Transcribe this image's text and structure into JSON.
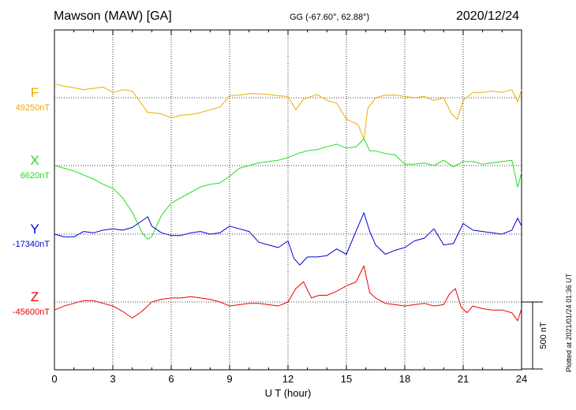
{
  "header": {
    "station": "Mawson (MAW)  [GA]",
    "coords": "GG (-67.60°,  62.88°)",
    "date": "2020/12/24"
  },
  "footer": {
    "plotted": "Plotted at 2021/01/24 01:36 UT"
  },
  "chart_data": {
    "type": "line",
    "xlabel": "U T (hour)",
    "xlim": [
      0,
      24
    ],
    "xticks": [
      0,
      3,
      6,
      9,
      12,
      15,
      18,
      21,
      24
    ],
    "xtick_labels": [
      "0",
      "3",
      "6",
      "9",
      "12",
      "15",
      "18",
      "21",
      "24"
    ],
    "grid": true,
    "scale_bar": {
      "label": "500 nT",
      "value_nT": 500
    },
    "series": [
      {
        "name": "F",
        "baseline_label": "49250nT",
        "baseline_nT": 49250,
        "color": "#f0a800",
        "x": [
          0,
          0.5,
          1,
          1.5,
          2,
          2.5,
          3,
          3.5,
          4,
          4.5,
          4.8,
          5,
          5.5,
          6,
          6.5,
          7,
          7.5,
          8,
          8.5,
          9,
          9.5,
          10,
          10.5,
          11,
          11.5,
          12,
          12.4,
          12.8,
          13.5,
          14,
          14.5,
          15,
          15.3,
          15.6,
          15.9,
          16.1,
          16.5,
          17,
          17.5,
          18,
          18.5,
          19,
          19.5,
          20,
          20.4,
          20.7,
          21,
          21.5,
          22,
          22.5,
          23,
          23.5,
          23.8,
          24
        ],
        "values": [
          105,
          85,
          75,
          60,
          70,
          80,
          40,
          60,
          50,
          -50,
          -110,
          -110,
          -120,
          -150,
          -130,
          -125,
          -110,
          -90,
          -70,
          15,
          20,
          30,
          30,
          25,
          15,
          10,
          -90,
          -10,
          25,
          -20,
          -40,
          -160,
          -180,
          -200,
          -310,
          -80,
          0,
          20,
          20,
          10,
          0,
          10,
          -20,
          0,
          -120,
          -160,
          -20,
          40,
          40,
          50,
          40,
          60,
          -30,
          60
        ]
      },
      {
        "name": "X",
        "baseline_label": "6620nT",
        "baseline_nT": 6620,
        "color": "#22dd22",
        "x": [
          0,
          0.5,
          1,
          1.5,
          2,
          2.5,
          3,
          3.5,
          4,
          4.5,
          4.8,
          5,
          5.5,
          6,
          6.5,
          7,
          7.5,
          8,
          8.5,
          9,
          9.5,
          10,
          10.5,
          11,
          11.5,
          12,
          12.5,
          13,
          13.5,
          14,
          14.5,
          15,
          15.5,
          15.9,
          16.2,
          16.5,
          17,
          17.5,
          18,
          18.5,
          19,
          19.5,
          20,
          20.5,
          21,
          21.5,
          22,
          22.5,
          23,
          23.5,
          23.8,
          24
        ],
        "values": [
          0,
          -20,
          -40,
          -70,
          -100,
          -140,
          -170,
          -240,
          -350,
          -500,
          -550,
          -530,
          -370,
          -280,
          -240,
          -200,
          -160,
          -140,
          -130,
          -80,
          -20,
          0,
          20,
          30,
          40,
          60,
          90,
          110,
          120,
          140,
          160,
          130,
          140,
          200,
          110,
          110,
          90,
          80,
          10,
          10,
          20,
          0,
          40,
          -10,
          30,
          30,
          10,
          20,
          30,
          40,
          -160,
          -50
        ]
      },
      {
        "name": "Y",
        "baseline_label": "-17340nT",
        "baseline_nT": -17340,
        "color": "#0000dd",
        "x": [
          0,
          0.5,
          1,
          1.5,
          2,
          2.5,
          3,
          3.5,
          4,
          4.5,
          4.8,
          5,
          5.5,
          6,
          6.5,
          7,
          7.5,
          8,
          8.5,
          9,
          9.5,
          10,
          10.5,
          11,
          11.5,
          12,
          12.3,
          12.6,
          13,
          13.5,
          14,
          14.5,
          15,
          15.4,
          15.9,
          16.2,
          16.5,
          17,
          17.5,
          18,
          18.5,
          19,
          19.5,
          20,
          20.5,
          21,
          21.5,
          22,
          22.5,
          23,
          23.5,
          23.8,
          24
        ],
        "values": [
          0,
          -20,
          -20,
          20,
          10,
          30,
          40,
          30,
          50,
          100,
          130,
          60,
          10,
          -10,
          -10,
          10,
          20,
          0,
          10,
          60,
          40,
          20,
          -60,
          -80,
          -100,
          -50,
          -180,
          -230,
          -170,
          -170,
          -160,
          -110,
          -150,
          -10,
          160,
          20,
          -80,
          -150,
          -120,
          -100,
          -50,
          -30,
          40,
          -80,
          -70,
          80,
          30,
          20,
          10,
          0,
          30,
          120,
          60
        ]
      },
      {
        "name": "Z",
        "baseline_label": "-45600nT",
        "baseline_nT": -45600,
        "color": "#ee0000",
        "x": [
          0,
          0.5,
          1,
          1.5,
          2,
          2.5,
          3,
          3.5,
          4,
          4.5,
          5,
          5.5,
          6,
          6.5,
          7,
          7.5,
          8,
          8.5,
          9,
          9.5,
          10,
          10.5,
          11,
          11.5,
          12,
          12.4,
          12.8,
          13.2,
          13.6,
          14,
          14.5,
          15,
          15.5,
          15.9,
          16.2,
          16.5,
          17,
          17.5,
          18,
          18.5,
          19,
          19.5,
          20,
          20.3,
          20.6,
          20.9,
          21.2,
          21.5,
          22,
          22.5,
          23,
          23.5,
          23.8,
          24
        ],
        "values": [
          -60,
          -30,
          -10,
          10,
          10,
          -10,
          -30,
          -70,
          -120,
          -70,
          0,
          20,
          30,
          30,
          40,
          30,
          20,
          0,
          -30,
          -20,
          -10,
          -10,
          -20,
          -30,
          0,
          100,
          150,
          30,
          50,
          50,
          80,
          120,
          150,
          270,
          70,
          30,
          -10,
          -20,
          -30,
          -20,
          -10,
          -30,
          -20,
          60,
          100,
          -40,
          -80,
          -30,
          -50,
          -60,
          -60,
          -80,
          -140,
          -50
        ]
      }
    ]
  }
}
